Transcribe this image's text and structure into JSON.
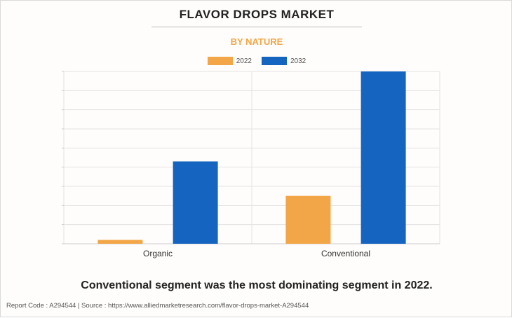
{
  "header": {
    "title": "FLAVOR DROPS MARKET",
    "subtitle": "BY NATURE"
  },
  "colors": {
    "series_2022": "#f2a647",
    "series_2032": "#1565c0",
    "subtitle": "#f2a647"
  },
  "chart_data": {
    "type": "bar",
    "title": "FLAVOR DROPS MARKET",
    "subtitle": "BY NATURE",
    "categories": [
      "Organic",
      "Conventional"
    ],
    "series": [
      {
        "name": "2022",
        "values": [
          0.2,
          2.5
        ]
      },
      {
        "name": "2032",
        "values": [
          4.3,
          9.0
        ]
      }
    ],
    "ylim": [
      0,
      9
    ],
    "grid": true,
    "legend": "top-center",
    "xlabel": "",
    "ylabel": ""
  },
  "caption": "Conventional segment was the most dominating segment in 2022.",
  "footer": "Report Code : A294544  |  Source : https://www.alliedmarketresearch.com/flavor-drops-market-A294544"
}
